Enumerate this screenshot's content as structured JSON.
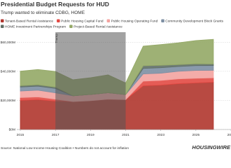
{
  "chart_data": {
    "type": "stacked-area",
    "title": "Presidential Budget Requests for HUD",
    "subtitle": "Trump wanted to eliminate CDBG, HOME",
    "source": "Source: National Low Income Housing Coalition • Numbers do not account for inflation",
    "logo": "HOUSINGWIRE",
    "x": [
      2015,
      2016,
      2017,
      2018,
      2019,
      2020,
      2021,
      2022,
      2023,
      2024,
      2025,
      2026
    ],
    "xlim": [
      2014.8,
      2027
    ],
    "xticks": [
      2015,
      2017,
      2019,
      2021,
      2023,
      2025,
      2027
    ],
    "ylim": [
      0,
      64000
    ],
    "yticks": [
      {
        "value": 0,
        "label": "$0M"
      },
      {
        "value": 20000,
        "label": "$20,000M"
      },
      {
        "value": 40000,
        "label": "$40,000M"
      },
      {
        "value": 60000,
        "label": "$60,000M"
      }
    ],
    "grid": true,
    "shading": {
      "label": "Trump",
      "from": 2017,
      "to": 2021
    },
    "series": [
      {
        "name": "Tenant-Based Rental Assistance",
        "color": "#b0362e",
        "values": [
          20000,
          20500,
          19500,
          19200,
          19800,
          20800,
          20500,
          30000,
          30500,
          31500,
          32000,
          32500
        ]
      },
      {
        "name": "Public Housing Capital Fund",
        "color": "#e24a44",
        "values": [
          1900,
          1900,
          1300,
          0,
          0,
          0,
          0,
          3200,
          3200,
          3300,
          3200,
          3000
        ]
      },
      {
        "name": "Public Housing Operating Fund",
        "color": "#f3a3a0",
        "values": [
          4500,
          4600,
          4400,
          4000,
          4300,
          4500,
          3500,
          5000,
          5000,
          5200,
          5400,
          5200
        ]
      },
      {
        "name": "Community Development Block Grants",
        "color": "#7d8fa3",
        "values": [
          2800,
          2800,
          3000,
          0,
          0,
          0,
          0,
          3800,
          3800,
          3300,
          3300,
          3300
        ]
      },
      {
        "name": "HOME Investment Partnerships Program",
        "color": "#5f6f66",
        "values": [
          900,
          950,
          950,
          0,
          0,
          0,
          0,
          1800,
          1600,
          1300,
          1250,
          1000
        ]
      },
      {
        "name": "Project-Based Rental Assistance",
        "color": "#94a866",
        "values": [
          10000,
          10500,
          10800,
          11000,
          11500,
          12300,
          8000,
          13500,
          14300,
          15000,
          16000,
          17000
        ]
      }
    ]
  }
}
